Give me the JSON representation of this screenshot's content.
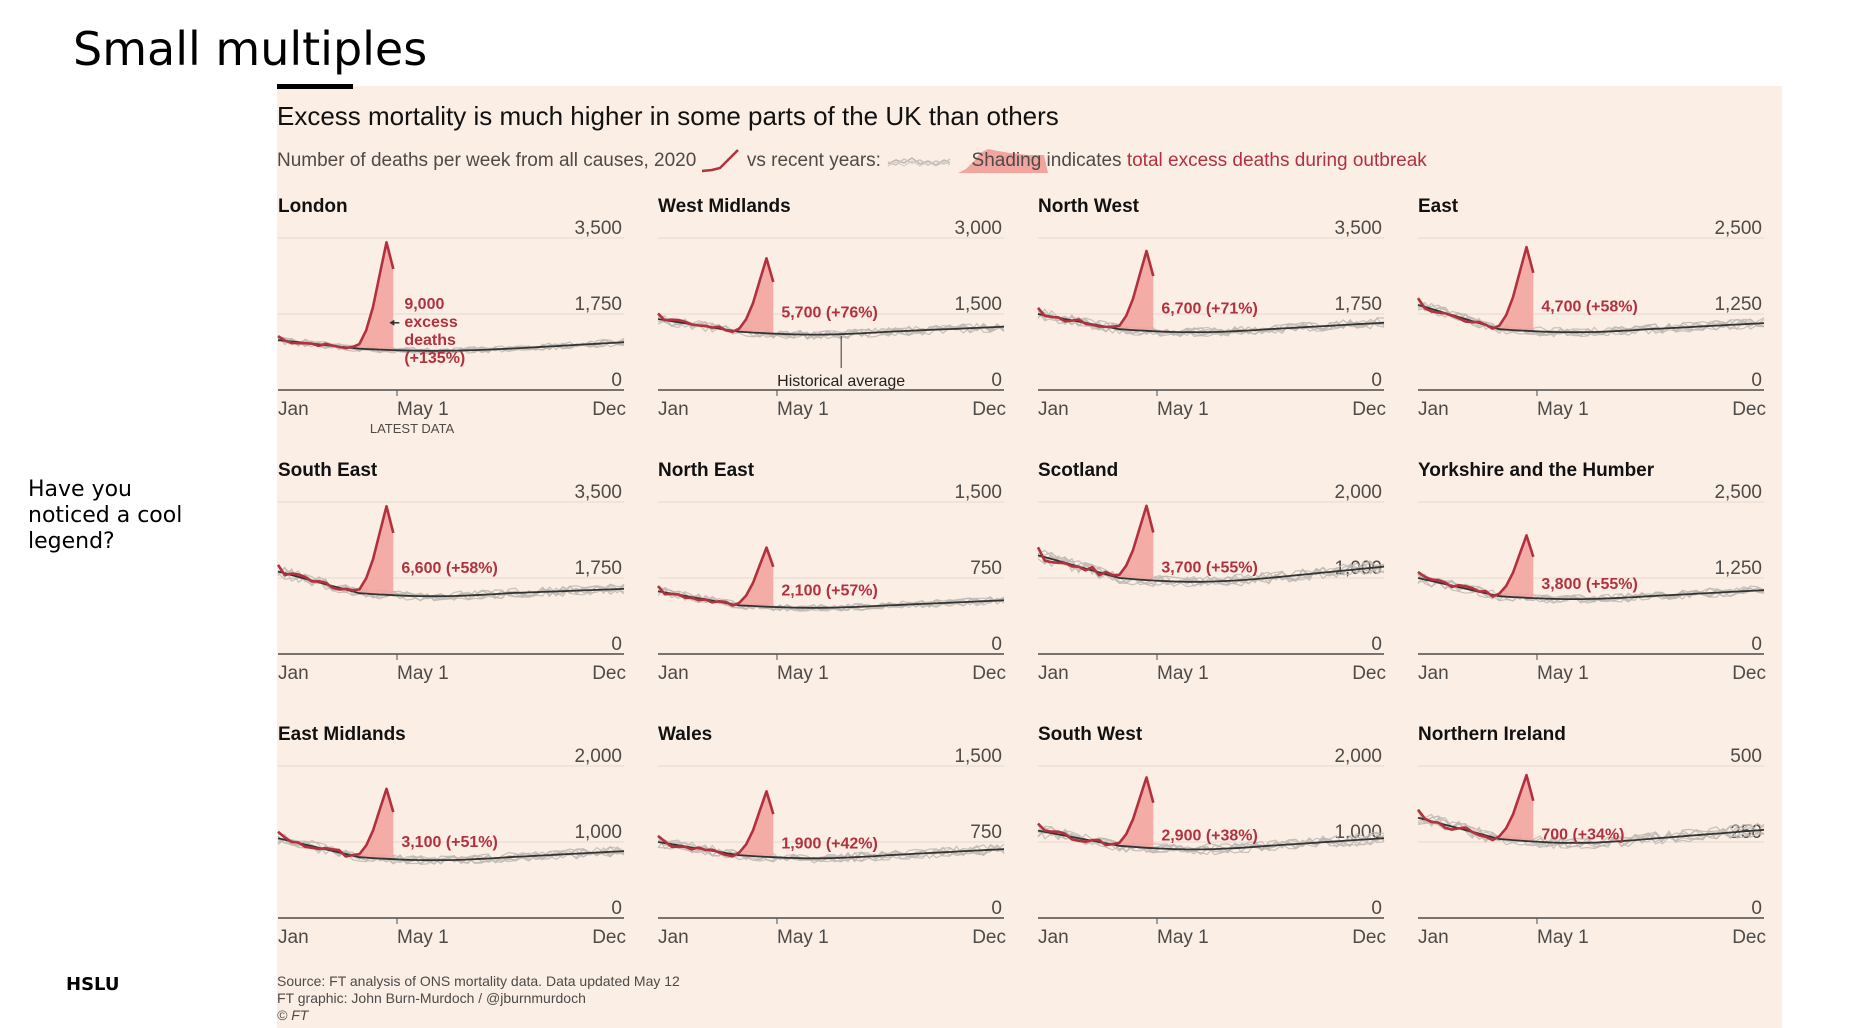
{
  "slide": {
    "title": "Small multiples",
    "side_note": "Have you noticed a cool legend?",
    "footer_label": "HSLU"
  },
  "figure": {
    "title": "Excess mortality is much higher in some parts of the UK than others",
    "subtitle_part1": "Number of deaths per week from all causes,",
    "legend_2020": "2020",
    "subtitle_part2": "vs recent years:",
    "legend_shading": "Shading",
    "subtitle_part3": "indicates",
    "subtitle_accent": "total excess deaths during outbreak",
    "source_lines": [
      "Source: FT analysis of ONS mortality data. Data updated May 12",
      "FT graphic: John Burn-Murdoch / @jburnmurdoch",
      "© FT"
    ],
    "colors": {
      "background": "#fbeee4",
      "line_2020": "#b2313e",
      "shading": "#f2a49e",
      "average": "#333333",
      "past_years": "#bdb8b3"
    }
  },
  "chart_data": [
    {
      "type": "line",
      "title": "London",
      "x_ticks": [
        "Jan",
        "May 1",
        "Dec"
      ],
      "y_ticks": [
        "3,500",
        "1,750",
        "0"
      ],
      "ylim": [
        0,
        3500
      ],
      "ymax": 3500,
      "avg_start": 1150,
      "avg_mid": 950,
      "avg_end": 1100,
      "peak": 3400,
      "annotation": "9,000 excess deaths (+135%)",
      "annotation_lines": [
        "9,000",
        "excess",
        "deaths",
        "(+135%)"
      ],
      "arrow_label": "",
      "extra_label": "LATEST DATA",
      "series": [
        {
          "name": "2020"
        },
        {
          "name": "Historical average"
        }
      ]
    },
    {
      "type": "line",
      "title": "West Midlands",
      "x_ticks": [
        "Jan",
        "May 1",
        "Dec"
      ],
      "y_ticks": [
        "3,000",
        "1,500",
        "0"
      ],
      "ylim": [
        0,
        3000
      ],
      "ymax": 3000,
      "avg_start": 1400,
      "avg_mid": 1150,
      "avg_end": 1250,
      "peak": 2600,
      "annotation": "5,700 (+76%)",
      "annotation_lines": [
        "5,700 (+76%)"
      ],
      "arrow_label": "Historical average",
      "extra_label": "",
      "series": [
        {
          "name": "2020"
        },
        {
          "name": "Historical average"
        }
      ]
    },
    {
      "type": "line",
      "title": "North West",
      "x_ticks": [
        "Jan",
        "May 1",
        "Dec"
      ],
      "y_ticks": [
        "3,500",
        "1,750",
        "0"
      ],
      "ylim": [
        0,
        3500
      ],
      "ymax": 3500,
      "avg_start": 1750,
      "avg_mid": 1400,
      "avg_end": 1550,
      "peak": 3200,
      "annotation": "6,700 (+71%)",
      "annotation_lines": [
        "6,700 (+71%)"
      ],
      "arrow_label": "",
      "extra_label": "",
      "series": [
        {
          "name": "2020"
        },
        {
          "name": "Historical average"
        }
      ]
    },
    {
      "type": "line",
      "title": "East",
      "x_ticks": [
        "Jan",
        "May 1",
        "Dec"
      ],
      "y_ticks": [
        "2,500",
        "1,250",
        "0"
      ],
      "ylim": [
        0,
        2500
      ],
      "ymax": 2500,
      "avg_start": 1400,
      "avg_mid": 1000,
      "avg_end": 1100,
      "peak": 2350,
      "annotation": "4,700 (+58%)",
      "annotation_lines": [
        "4,700 (+58%)"
      ],
      "arrow_label": "",
      "extra_label": "",
      "series": [
        {
          "name": "2020"
        },
        {
          "name": "Historical average"
        }
      ]
    },
    {
      "type": "line",
      "title": "South East",
      "x_ticks": [
        "Jan",
        "May 1",
        "Dec"
      ],
      "y_ticks": [
        "3,500",
        "1,750",
        "0"
      ],
      "ylim": [
        0,
        3500
      ],
      "ymax": 3500,
      "avg_start": 1900,
      "avg_mid": 1400,
      "avg_end": 1500,
      "peak": 3400,
      "annotation": "6,600 (+58%)",
      "annotation_lines": [
        "6,600 (+58%)"
      ],
      "arrow_label": "",
      "extra_label": "",
      "series": [
        {
          "name": "2020"
        },
        {
          "name": "Historical average"
        }
      ]
    },
    {
      "type": "line",
      "title": "North East",
      "x_ticks": [
        "Jan",
        "May 1",
        "Dec"
      ],
      "y_ticks": [
        "1,500",
        "750",
        "0"
      ],
      "ylim": [
        0,
        1500
      ],
      "ymax": 1500,
      "avg_start": 620,
      "avg_mid": 480,
      "avg_end": 530,
      "peak": 1050,
      "annotation": "2,100 (+57%)",
      "annotation_lines": [
        "2,100 (+57%)"
      ],
      "arrow_label": "",
      "extra_label": "",
      "series": [
        {
          "name": "2020"
        },
        {
          "name": "Historical average"
        }
      ]
    },
    {
      "type": "line",
      "title": "Scotland",
      "x_ticks": [
        "Jan",
        "May 1",
        "Dec"
      ],
      "y_ticks": [
        "2,000",
        "1,000",
        "0"
      ],
      "ylim": [
        0,
        2000
      ],
      "ymax": 2000,
      "avg_start": 1300,
      "avg_mid": 1000,
      "avg_end": 1150,
      "peak": 1950,
      "annotation": "3,700 (+55%)",
      "annotation_lines": [
        "3,700 (+55%)"
      ],
      "arrow_label": "",
      "extra_label": "",
      "series": [
        {
          "name": "2020"
        },
        {
          "name": "Historical average"
        }
      ]
    },
    {
      "type": "line",
      "title": "Yorkshire and the Humber",
      "x_ticks": [
        "Jan",
        "May 1",
        "Dec"
      ],
      "y_ticks": [
        "2,500",
        "1,250",
        "0"
      ],
      "ylim": [
        0,
        2500
      ],
      "ymax": 2500,
      "avg_start": 1250,
      "avg_mid": 950,
      "avg_end": 1050,
      "peak": 1950,
      "annotation": "3,800 (+55%)",
      "annotation_lines": [
        "3,800 (+55%)"
      ],
      "arrow_label": "",
      "extra_label": "",
      "series": [
        {
          "name": "2020"
        },
        {
          "name": "Historical average"
        }
      ]
    },
    {
      "type": "line",
      "title": "East Midlands",
      "x_ticks": [
        "Jan",
        "May 1",
        "Dec"
      ],
      "y_ticks": [
        "2,000",
        "1,000",
        "0"
      ],
      "ylim": [
        0,
        2000
      ],
      "ymax": 2000,
      "avg_start": 1050,
      "avg_mid": 800,
      "avg_end": 880,
      "peak": 1700,
      "annotation": "3,100 (+51%)",
      "annotation_lines": [
        "3,100 (+51%)"
      ],
      "arrow_label": "",
      "extra_label": "",
      "series": [
        {
          "name": "2020"
        },
        {
          "name": "Historical average"
        }
      ]
    },
    {
      "type": "line",
      "title": "Wales",
      "x_ticks": [
        "Jan",
        "May 1",
        "Dec"
      ],
      "y_ticks": [
        "1,500",
        "750",
        "0"
      ],
      "ylim": [
        0,
        1500
      ],
      "ymax": 1500,
      "avg_start": 750,
      "avg_mid": 620,
      "avg_end": 680,
      "peak": 1250,
      "annotation": "1,900 (+42%)",
      "annotation_lines": [
        "1,900 (+42%)"
      ],
      "arrow_label": "",
      "extra_label": "",
      "series": [
        {
          "name": "2020"
        },
        {
          "name": "Historical average"
        }
      ]
    },
    {
      "type": "line",
      "title": "South West",
      "x_ticks": [
        "Jan",
        "May 1",
        "Dec"
      ],
      "y_ticks": [
        "2,000",
        "1,000",
        "0"
      ],
      "ylim": [
        0,
        2000
      ],
      "ymax": 2000,
      "avg_start": 1150,
      "avg_mid": 950,
      "avg_end": 1050,
      "peak": 1850,
      "annotation": "2,900 (+38%)",
      "annotation_lines": [
        "2,900 (+38%)"
      ],
      "arrow_label": "",
      "extra_label": "",
      "series": [
        {
          "name": "2020"
        },
        {
          "name": "Historical average"
        }
      ]
    },
    {
      "type": "line",
      "title": "Northern Ireland",
      "x_ticks": [
        "Jan",
        "May 1",
        "Dec"
      ],
      "y_ticks": [
        "500",
        "250",
        "0"
      ],
      "ylim": [
        0,
        500
      ],
      "ymax": 500,
      "avg_start": 330,
      "avg_mid": 260,
      "avg_end": 290,
      "peak": 470,
      "annotation": "700 (+34%)",
      "annotation_lines": [
        "700 (+34%)"
      ],
      "arrow_label": "",
      "extra_label": "",
      "series": [
        {
          "name": "2020"
        },
        {
          "name": "Historical average"
        }
      ]
    }
  ]
}
